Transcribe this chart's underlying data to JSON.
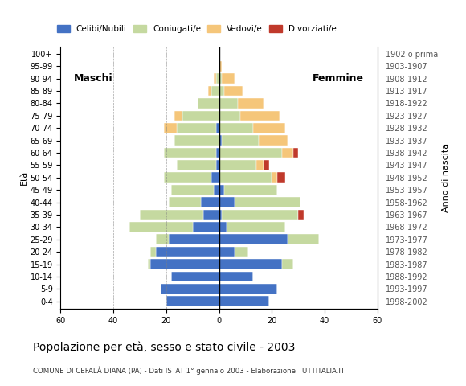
{
  "age_groups": [
    "0-4",
    "5-9",
    "10-14",
    "15-19",
    "20-24",
    "25-29",
    "30-34",
    "35-39",
    "40-44",
    "45-49",
    "50-54",
    "55-59",
    "60-64",
    "65-69",
    "70-74",
    "75-79",
    "80-84",
    "85-89",
    "90-94",
    "95-99",
    "100+"
  ],
  "birth_years": [
    "1998-2002",
    "1993-1997",
    "1988-1992",
    "1983-1987",
    "1978-1982",
    "1973-1977",
    "1968-1972",
    "1963-1967",
    "1958-1962",
    "1953-1957",
    "1948-1952",
    "1943-1947",
    "1938-1942",
    "1933-1937",
    "1928-1932",
    "1923-1927",
    "1918-1922",
    "1913-1917",
    "1908-1912",
    "1903-1907",
    "1902 o prima"
  ],
  "males": {
    "celibi": [
      20,
      22,
      18,
      26,
      24,
      19,
      10,
      6,
      7,
      2,
      3,
      1,
      1,
      0,
      1,
      0,
      0,
      0,
      0,
      0,
      0
    ],
    "coniugati": [
      0,
      0,
      0,
      1,
      2,
      5,
      24,
      24,
      12,
      16,
      18,
      15,
      20,
      17,
      15,
      14,
      8,
      3,
      1,
      0,
      0
    ],
    "vedovi": [
      0,
      0,
      0,
      0,
      0,
      0,
      0,
      0,
      0,
      0,
      0,
      0,
      0,
      0,
      5,
      3,
      0,
      1,
      1,
      0,
      0
    ],
    "divorziati": [
      0,
      0,
      0,
      0,
      0,
      0,
      0,
      0,
      0,
      0,
      0,
      0,
      0,
      0,
      0,
      0,
      0,
      0,
      0,
      0,
      0
    ]
  },
  "females": {
    "nubili": [
      19,
      22,
      13,
      24,
      6,
      26,
      3,
      1,
      6,
      2,
      0,
      0,
      0,
      1,
      0,
      0,
      0,
      0,
      0,
      0,
      0
    ],
    "coniugate": [
      0,
      0,
      0,
      4,
      5,
      12,
      22,
      29,
      25,
      20,
      20,
      14,
      24,
      14,
      13,
      8,
      7,
      2,
      1,
      0,
      0
    ],
    "vedove": [
      0,
      0,
      0,
      0,
      0,
      0,
      0,
      0,
      0,
      0,
      2,
      3,
      4,
      11,
      12,
      15,
      10,
      7,
      5,
      1,
      0
    ],
    "divorziate": [
      0,
      0,
      0,
      0,
      0,
      0,
      0,
      2,
      0,
      0,
      3,
      2,
      2,
      0,
      0,
      0,
      0,
      0,
      0,
      0,
      0
    ]
  },
  "colors": {
    "celibi_nubili": "#4472c4",
    "coniugati": "#c5d9a0",
    "vedovi": "#f5c67a",
    "divorziati": "#c0392b"
  },
  "title": "Popolazione per età, sesso e stato civile - 2003",
  "subtitle": "COMUNE DI CEFALÀ DIANA (PA) - Dati ISTAT 1° gennaio 2003 - Elaborazione TUTTITALIA.IT",
  "xlabel_left": "Maschi",
  "xlabel_right": "Femmine",
  "ylabel": "Età",
  "ylabel_right": "Anno di nascita",
  "xlim": 60,
  "legend_labels": [
    "Celibi/Nubili",
    "Coniugati/e",
    "Vedovi/e",
    "Divorziati/e"
  ],
  "background_color": "#ffffff",
  "bar_height": 0.82
}
